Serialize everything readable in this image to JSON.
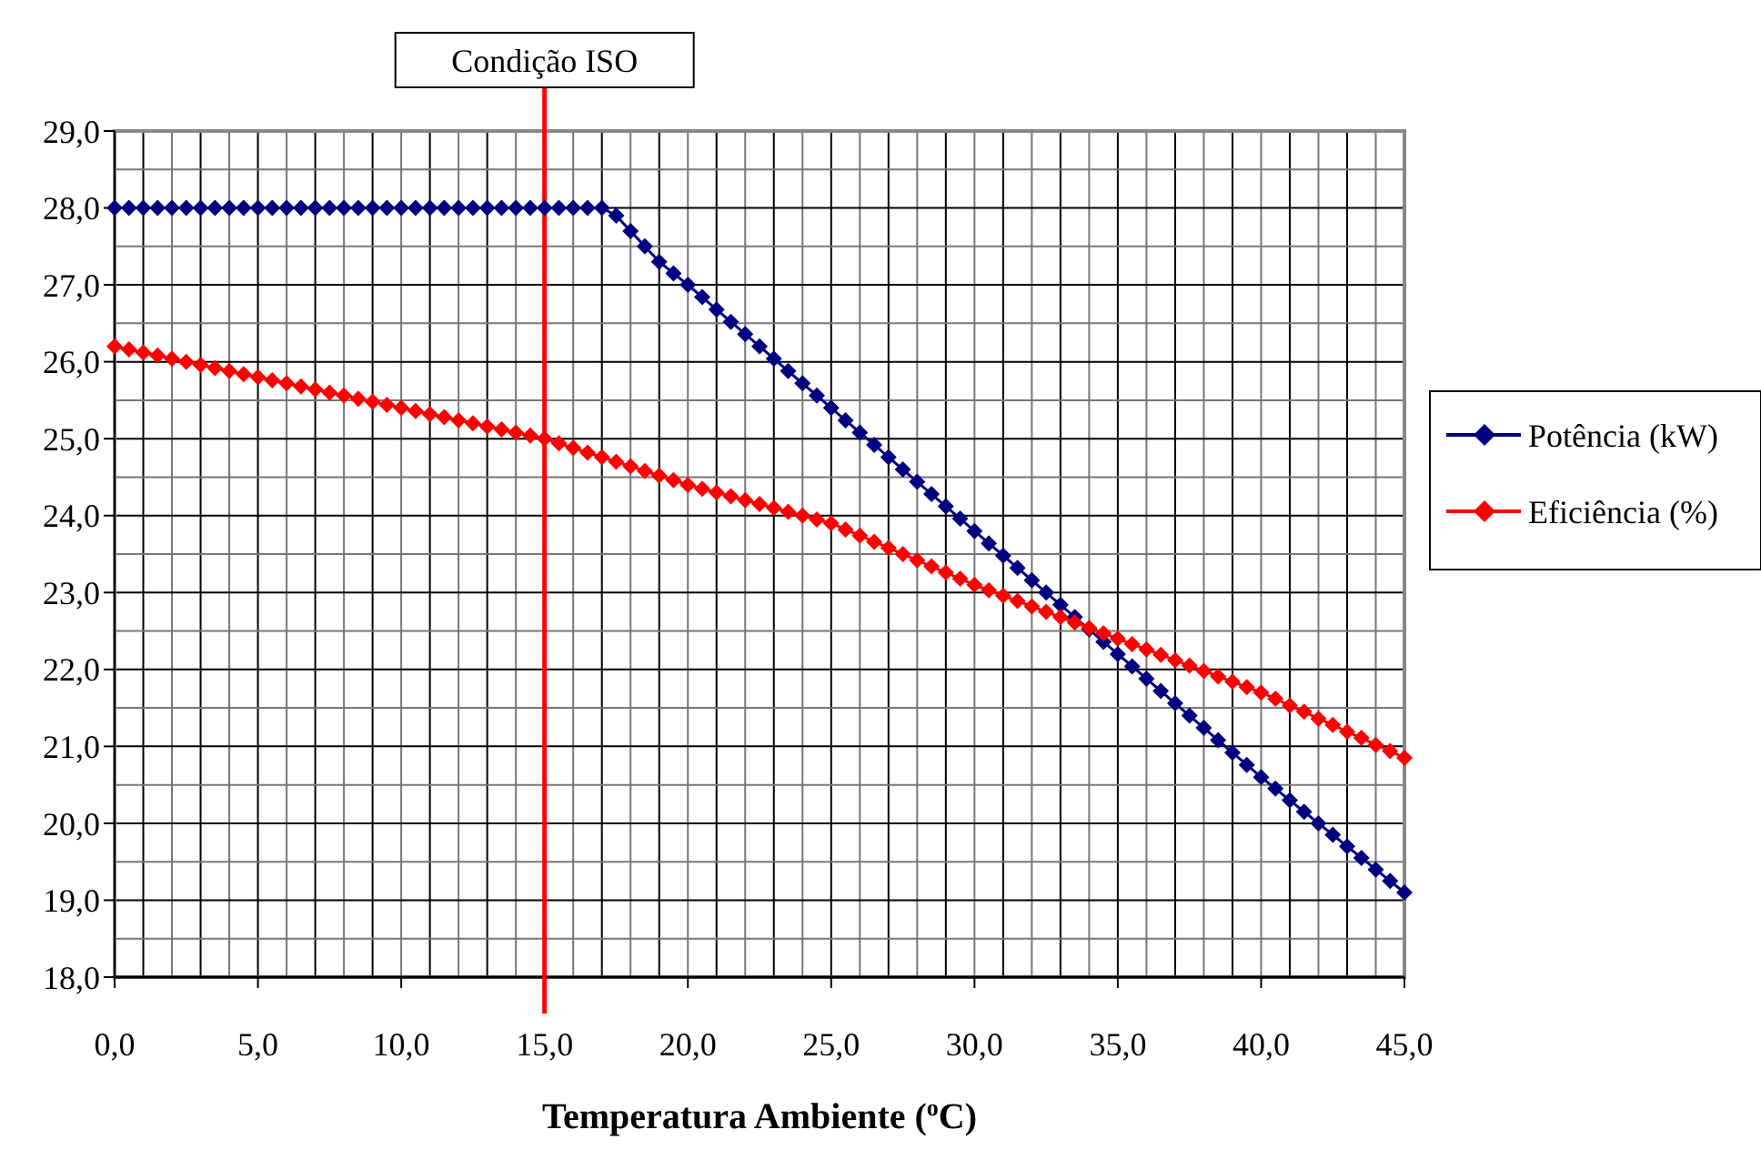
{
  "chart_data": {
    "type": "line",
    "xlabel": "Temperatura Ambiente ($^{o}$C)",
    "x": [
      0,
      0.5,
      1,
      1.5,
      2,
      2.5,
      3,
      3.5,
      4,
      4.5,
      5,
      5.5,
      6,
      6.5,
      7,
      7.5,
      8,
      8.5,
      9,
      9.5,
      10,
      10.5,
      11,
      11.5,
      12,
      12.5,
      13,
      13.5,
      14,
      14.5,
      15,
      15.5,
      16,
      16.5,
      17,
      17.5,
      18,
      18.5,
      19,
      19.5,
      20,
      20.5,
      21,
      21.5,
      22,
      22.5,
      23,
      23.5,
      24,
      24.5,
      25,
      25.5,
      26,
      26.5,
      27,
      27.5,
      28,
      28.5,
      29,
      29.5,
      30,
      30.5,
      31,
      31.5,
      32,
      32.5,
      33,
      33.5,
      34,
      34.5,
      35,
      35.5,
      36,
      36.5,
      37,
      37.5,
      38,
      38.5,
      39,
      39.5,
      40,
      40.5,
      41,
      41.5,
      42,
      42.5,
      43,
      43.5,
      44,
      44.5,
      45
    ],
    "series": [
      {
        "name": "Potência (kW)",
        "color": "#000080",
        "values": [
          28,
          28,
          28,
          28,
          28,
          28,
          28,
          28,
          28,
          28,
          28,
          28,
          28,
          28,
          28,
          28,
          28,
          28,
          28,
          28,
          28,
          28,
          28,
          28,
          28,
          28,
          28,
          28,
          28,
          28,
          28,
          28,
          28,
          28,
          28,
          27.9,
          27.7,
          27.5,
          27.3,
          27.15,
          27.0,
          26.84,
          26.68,
          26.52,
          26.36,
          26.2,
          26.04,
          25.88,
          25.72,
          25.56,
          25.4,
          25.24,
          25.08,
          24.92,
          24.76,
          24.6,
          24.44,
          24.28,
          24.12,
          23.96,
          23.8,
          23.64,
          23.48,
          23.32,
          23.16,
          23.0,
          22.84,
          22.68,
          22.52,
          22.36,
          22.2,
          22.04,
          21.88,
          21.72,
          21.56,
          21.4,
          21.24,
          21.08,
          20.92,
          20.76,
          20.6,
          20.45,
          20.3,
          20.15,
          20.0,
          19.85,
          19.7,
          19.55,
          19.4,
          19.25,
          19.1
        ]
      },
      {
        "name": "Eficiência (%)",
        "color": "#ff0000",
        "values": [
          26.2,
          26.16,
          26.12,
          26.08,
          26.04,
          26.0,
          25.96,
          25.92,
          25.88,
          25.84,
          25.8,
          25.76,
          25.72,
          25.68,
          25.64,
          25.6,
          25.56,
          25.52,
          25.48,
          25.44,
          25.4,
          25.36,
          25.32,
          25.28,
          25.24,
          25.2,
          25.16,
          25.12,
          25.08,
          25.04,
          25.0,
          24.94,
          24.88,
          24.82,
          24.76,
          24.7,
          24.64,
          24.58,
          24.52,
          24.46,
          24.4,
          24.35,
          24.3,
          24.25,
          24.2,
          24.15,
          24.1,
          24.05,
          24.0,
          23.95,
          23.9,
          23.82,
          23.74,
          23.66,
          23.58,
          23.5,
          23.42,
          23.34,
          23.26,
          23.18,
          23.1,
          23.03,
          22.96,
          22.89,
          22.82,
          22.75,
          22.68,
          22.61,
          22.54,
          22.47,
          22.4,
          22.33,
          22.26,
          22.19,
          22.12,
          22.05,
          21.98,
          21.91,
          21.84,
          21.77,
          21.7,
          21.62,
          21.53,
          21.45,
          21.36,
          21.28,
          21.19,
          21.11,
          21.02,
          20.94,
          20.85
        ]
      }
    ],
    "xlim": [
      0,
      45
    ],
    "xticks": [
      {
        "value": 0,
        "label": "0,0"
      },
      {
        "value": 1,
        "label": null
      },
      {
        "value": 2,
        "label": null
      },
      {
        "value": 3,
        "label": null
      },
      {
        "value": 4,
        "label": null
      },
      {
        "value": 5,
        "label": "5,0"
      },
      {
        "value": 6,
        "label": null
      },
      {
        "value": 7,
        "label": null
      },
      {
        "value": 8,
        "label": null
      },
      {
        "value": 9,
        "label": null
      },
      {
        "value": 10,
        "label": "10,0"
      },
      {
        "value": 11,
        "label": null
      },
      {
        "value": 12,
        "label": null
      },
      {
        "value": 13,
        "label": null
      },
      {
        "value": 14,
        "label": null
      },
      {
        "value": 15,
        "label": "15,0"
      },
      {
        "value": 16,
        "label": null
      },
      {
        "value": 17,
        "label": null
      },
      {
        "value": 18,
        "label": null
      },
      {
        "value": 19,
        "label": null
      },
      {
        "value": 20,
        "label": "20,0"
      },
      {
        "value": 21,
        "label": null
      },
      {
        "value": 22,
        "label": null
      },
      {
        "value": 23,
        "label": null
      },
      {
        "value": 24,
        "label": null
      },
      {
        "value": 25,
        "label": "25,0"
      },
      {
        "value": 26,
        "label": null
      },
      {
        "value": 27,
        "label": null
      },
      {
        "value": 28,
        "label": null
      },
      {
        "value": 29,
        "label": null
      },
      {
        "value": 30,
        "label": "30,0"
      },
      {
        "value": 31,
        "label": null
      },
      {
        "value": 32,
        "label": null
      },
      {
        "value": 33,
        "label": null
      },
      {
        "value": 34,
        "label": null
      },
      {
        "value": 35,
        "label": "35,0"
      },
      {
        "value": 36,
        "label": null
      },
      {
        "value": 37,
        "label": null
      },
      {
        "value": 38,
        "label": null
      },
      {
        "value": 39,
        "label": null
      },
      {
        "value": 40,
        "label": "40,0"
      },
      {
        "value": 41,
        "label": null
      },
      {
        "value": 42,
        "label": null
      },
      {
        "value": 43,
        "label": null
      },
      {
        "value": 44,
        "label": null
      },
      {
        "value": 45,
        "label": "45,0"
      }
    ],
    "ylim": [
      18,
      29
    ],
    "yticks": [
      {
        "value": 18,
        "label": "18,0"
      },
      {
        "value": 18.5,
        "label": null
      },
      {
        "value": 19,
        "label": "19,0"
      },
      {
        "value": 19.5,
        "label": null
      },
      {
        "value": 20,
        "label": "20,0"
      },
      {
        "value": 20.5,
        "label": null
      },
      {
        "value": 21,
        "label": "21,0"
      },
      {
        "value": 21.5,
        "label": null
      },
      {
        "value": 22,
        "label": "22,0"
      },
      {
        "value": 22.5,
        "label": null
      },
      {
        "value": 23,
        "label": "23,0"
      },
      {
        "value": 23.5,
        "label": null
      },
      {
        "value": 24,
        "label": "24,0"
      },
      {
        "value": 24.5,
        "label": null
      },
      {
        "value": 25,
        "label": "25,0"
      },
      {
        "value": 25.5,
        "label": null
      },
      {
        "value": 26,
        "label": "26,0"
      },
      {
        "value": 26.5,
        "label": null
      },
      {
        "value": 27,
        "label": "27,0"
      },
      {
        "value": 27.5,
        "label": null
      },
      {
        "value": 28,
        "label": "28,0"
      },
      {
        "value": 28.5,
        "label": null
      },
      {
        "value": 29,
        "label": "29,0"
      }
    ],
    "ref_lines": [
      {
        "axis": "x",
        "value": 15,
        "label": "Condição ISO",
        "color": "#ff0000"
      }
    ],
    "grid": true,
    "legend": "right",
    "marker": "diamond",
    "line_style": "solid"
  }
}
